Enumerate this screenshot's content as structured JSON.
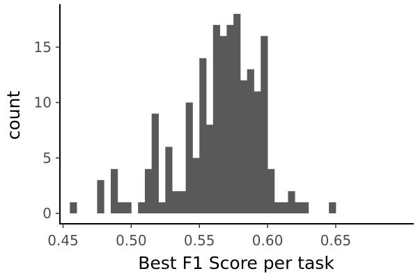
{
  "chart_data": {
    "type": "bar",
    "subtype": "histogram",
    "title": "",
    "xlabel": "Best F1 Score per task",
    "ylabel": "count",
    "xlim": [
      0.455,
      0.655
    ],
    "ylim": [
      0,
      18
    ],
    "xticks": [
      {
        "value": 0.45,
        "label": "0.45"
      },
      {
        "value": 0.5,
        "label": "0.50"
      },
      {
        "value": 0.55,
        "label": "0.55"
      },
      {
        "value": 0.6,
        "label": "0.60"
      },
      {
        "value": 0.65,
        "label": "0.65"
      }
    ],
    "yticks": [
      {
        "value": 0,
        "label": "0"
      },
      {
        "value": 5,
        "label": "5"
      },
      {
        "value": 10,
        "label": "10"
      },
      {
        "value": 15,
        "label": "15"
      }
    ],
    "grid": false,
    "bar_color": "#595959",
    "bin_width": 0.005,
    "bins": [
      {
        "x0": 0.455,
        "x1": 0.46,
        "count": 1
      },
      {
        "x0": 0.475,
        "x1": 0.48,
        "count": 3
      },
      {
        "x0": 0.485,
        "x1": 0.49,
        "count": 4
      },
      {
        "x0": 0.49,
        "x1": 0.495,
        "count": 1
      },
      {
        "x0": 0.495,
        "x1": 0.5,
        "count": 1
      },
      {
        "x0": 0.505,
        "x1": 0.51,
        "count": 1
      },
      {
        "x0": 0.51,
        "x1": 0.515,
        "count": 4
      },
      {
        "x0": 0.515,
        "x1": 0.52,
        "count": 9
      },
      {
        "x0": 0.52,
        "x1": 0.525,
        "count": 1
      },
      {
        "x0": 0.525,
        "x1": 0.53,
        "count": 6
      },
      {
        "x0": 0.53,
        "x1": 0.535,
        "count": 2
      },
      {
        "x0": 0.535,
        "x1": 0.54,
        "count": 2
      },
      {
        "x0": 0.54,
        "x1": 0.545,
        "count": 10
      },
      {
        "x0": 0.545,
        "x1": 0.55,
        "count": 5
      },
      {
        "x0": 0.55,
        "x1": 0.555,
        "count": 14
      },
      {
        "x0": 0.555,
        "x1": 0.56,
        "count": 8
      },
      {
        "x0": 0.56,
        "x1": 0.565,
        "count": 17
      },
      {
        "x0": 0.565,
        "x1": 0.57,
        "count": 16
      },
      {
        "x0": 0.57,
        "x1": 0.575,
        "count": 17
      },
      {
        "x0": 0.575,
        "x1": 0.58,
        "count": 18
      },
      {
        "x0": 0.58,
        "x1": 0.585,
        "count": 12
      },
      {
        "x0": 0.585,
        "x1": 0.59,
        "count": 13
      },
      {
        "x0": 0.59,
        "x1": 0.595,
        "count": 11
      },
      {
        "x0": 0.595,
        "x1": 0.6,
        "count": 16
      },
      {
        "x0": 0.6,
        "x1": 0.605,
        "count": 4
      },
      {
        "x0": 0.605,
        "x1": 0.61,
        "count": 1
      },
      {
        "x0": 0.61,
        "x1": 0.615,
        "count": 1
      },
      {
        "x0": 0.615,
        "x1": 0.62,
        "count": 2
      },
      {
        "x0": 0.62,
        "x1": 0.625,
        "count": 1
      },
      {
        "x0": 0.625,
        "x1": 0.63,
        "count": 1
      },
      {
        "x0": 0.645,
        "x1": 0.65,
        "count": 1
      }
    ]
  }
}
